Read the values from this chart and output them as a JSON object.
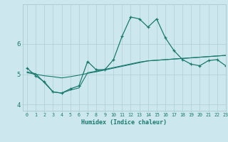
{
  "xlabel": "Humidex (Indice chaleur)",
  "bg_color": "#cce8ee",
  "line_color": "#1a7a6e",
  "grid_color": "#b0cdd4",
  "xlim": [
    -0.5,
    23
  ],
  "ylim": [
    3.8,
    7.3
  ],
  "yticks": [
    4,
    5,
    6
  ],
  "xticks": [
    0,
    1,
    2,
    3,
    4,
    5,
    6,
    7,
    8,
    9,
    10,
    11,
    12,
    13,
    14,
    15,
    16,
    17,
    18,
    19,
    20,
    21,
    22,
    23
  ],
  "s1_x": [
    0,
    1,
    2,
    3,
    4,
    5,
    6,
    7,
    8,
    9,
    10,
    11,
    12,
    13,
    14,
    15,
    16,
    17,
    18,
    19,
    20,
    21,
    22,
    23
  ],
  "s1_y": [
    5.2,
    4.95,
    4.75,
    4.42,
    4.38,
    4.52,
    4.62,
    5.42,
    5.15,
    5.15,
    5.48,
    6.25,
    6.88,
    6.82,
    6.55,
    6.82,
    6.2,
    5.78,
    5.48,
    5.33,
    5.28,
    5.45,
    5.48,
    5.28
  ],
  "s2_x": [
    0,
    1,
    2,
    3,
    4,
    5,
    6,
    7,
    8,
    9,
    10,
    11,
    12,
    13,
    14,
    15,
    16,
    17,
    18,
    19,
    20,
    21,
    22,
    23
  ],
  "s2_y": [
    5.05,
    5.0,
    4.95,
    4.92,
    4.88,
    4.92,
    4.97,
    5.03,
    5.08,
    5.14,
    5.2,
    5.26,
    5.32,
    5.38,
    5.44,
    5.46,
    5.48,
    5.5,
    5.52,
    5.54,
    5.56,
    5.58,
    5.6,
    5.62
  ],
  "s3_x": [
    0,
    1,
    2,
    3,
    4,
    5,
    6,
    7,
    8,
    9,
    10,
    11,
    12,
    13,
    14,
    15,
    16,
    17,
    18,
    19,
    20,
    21,
    22,
    23
  ],
  "s3_y": [
    5.08,
    5.02,
    4.72,
    4.42,
    4.38,
    4.48,
    4.55,
    5.05,
    5.1,
    5.16,
    5.22,
    5.28,
    5.34,
    5.4,
    5.44,
    5.46,
    5.48,
    5.5,
    5.52,
    5.54,
    5.56,
    5.58,
    5.6,
    5.62
  ]
}
